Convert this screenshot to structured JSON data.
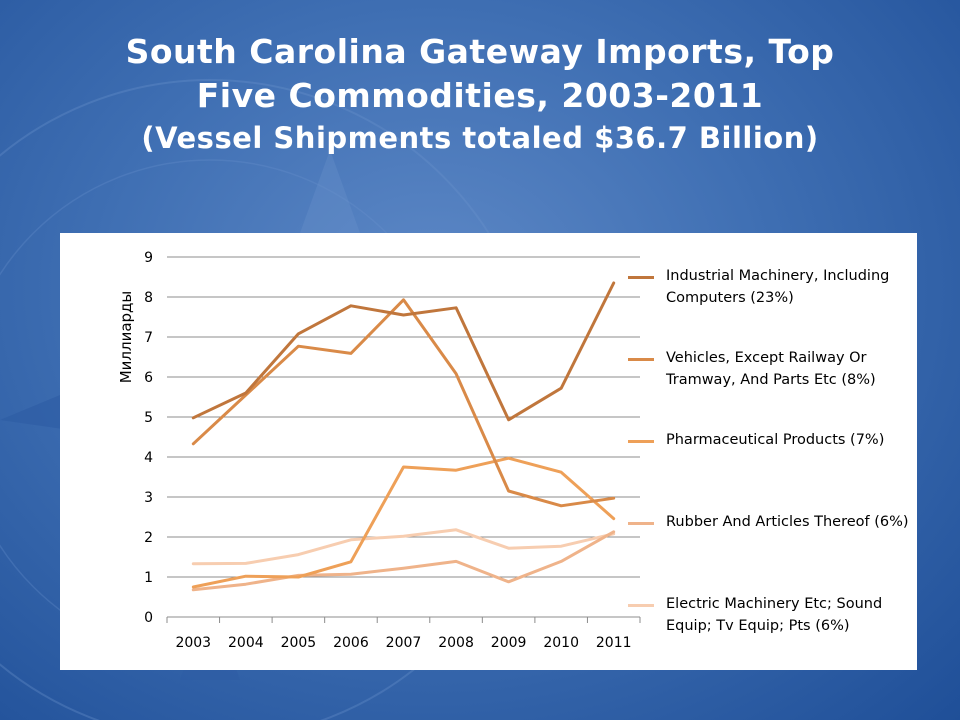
{
  "slide": {
    "title_line1": "South Carolina Gateway Imports, Top",
    "title_line2": "Five Commodities, 2003-2011",
    "subtitle": "(Vessel Shipments totaled $36.7 Billion)"
  },
  "colors": {
    "background": "#3f6fb3",
    "title_text": "#ffffff"
  },
  "chart_data": {
    "type": "line",
    "title": "",
    "xlabel": "",
    "ylabel": "Миллиарды",
    "categories": [
      "2003",
      "2004",
      "2005",
      "2006",
      "2007",
      "2008",
      "2009",
      "2010",
      "2011"
    ],
    "ylim": [
      0,
      9
    ],
    "yticks": [
      "0",
      "1",
      "2",
      "3",
      "4",
      "5",
      "6",
      "7",
      "8",
      "9"
    ],
    "grid": true,
    "legend_position": "right",
    "series": [
      {
        "name": "Industrial Machinery, Including Computers (23%)",
        "color": "#c0763c",
        "values": [
          4.98,
          5.6,
          7.08,
          7.78,
          7.55,
          7.73,
          4.93,
          5.72,
          8.35
        ]
      },
      {
        "name": "Vehicles, Except Railway Or Tramway, And Parts Etc (8%)",
        "color": "#d98a48",
        "values": [
          4.33,
          5.55,
          6.77,
          6.59,
          7.93,
          6.08,
          3.15,
          2.78,
          2.97
        ]
      },
      {
        "name": "Pharmaceutical Products (7%)",
        "color": "#eea058",
        "values": [
          0.75,
          1.02,
          1.0,
          1.38,
          3.75,
          3.67,
          3.97,
          3.62,
          2.46
        ]
      },
      {
        "name": "Rubber And Articles Thereof (6%)",
        "color": "#efb38a",
        "values": [
          0.68,
          0.82,
          1.04,
          1.07,
          1.22,
          1.39,
          0.88,
          1.39,
          2.13
        ]
      },
      {
        "name": "Electric Machinery Etc; Sound Equip; Tv Equip; Pts (6%)",
        "color": "#f7cdb0",
        "values": [
          1.33,
          1.34,
          1.56,
          1.93,
          2.02,
          2.18,
          1.72,
          1.77,
          2.08
        ]
      }
    ]
  }
}
